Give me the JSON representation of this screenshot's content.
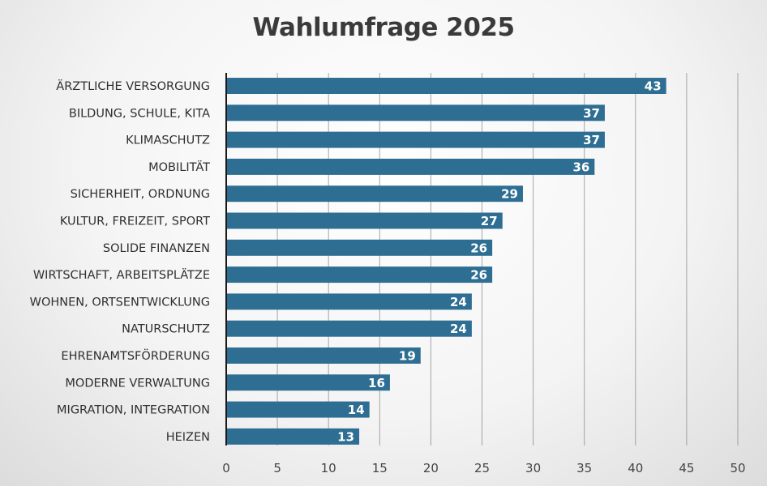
{
  "chart_data": {
    "type": "bar",
    "orientation": "horizontal",
    "title": "Wahlumfrage 2025",
    "xlabel": "",
    "ylabel": "",
    "categories": [
      "ÄRZTLICHE VERSORGUNG",
      "BILDUNG, SCHULE, KITA",
      "KLIMASCHUTZ",
      "MOBILITÄT",
      "SICHERHEIT, ORDNUNG",
      "KULTUR, FREIZEIT, SPORT",
      "SOLIDE FINANZEN",
      "WIRTSCHAFT, ARBEITSPLÄTZE",
      "WOHNEN, ORTSENTWICKLUNG",
      "NATURSCHUTZ",
      "EHRENAMTSFÖRDERUNG",
      "MODERNE VERWALTUNG",
      "MIGRATION, INTEGRATION",
      "HEIZEN"
    ],
    "values": [
      43,
      37,
      37,
      36,
      29,
      27,
      26,
      26,
      24,
      24,
      19,
      16,
      14,
      13
    ],
    "xlim": [
      0,
      50
    ],
    "xticks": [
      0,
      5,
      10,
      15,
      20,
      25,
      30,
      35,
      40,
      45,
      50
    ],
    "grid": "vertical",
    "legend": "none",
    "bar_color": "#2e6e93",
    "value_label_color": "#ffffff",
    "grid_color": "#8a8a8a"
  }
}
